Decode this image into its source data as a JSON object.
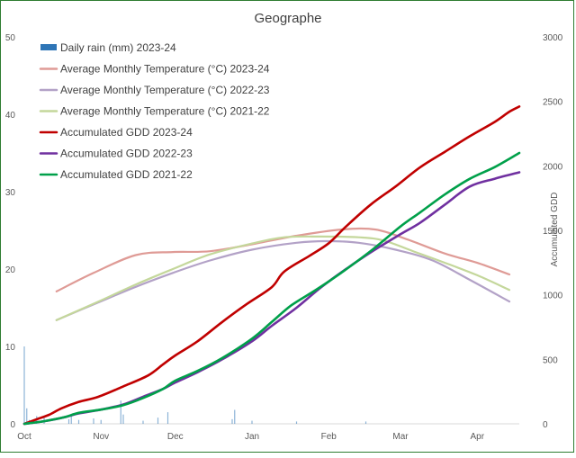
{
  "chart_data": {
    "type": "line",
    "title": "Geographe",
    "y_left": {
      "label": "",
      "ylim": [
        0,
        50
      ],
      "ticks": [
        0,
        10,
        20,
        30,
        40,
        50
      ]
    },
    "y_right": {
      "label": "Accumulated GDD",
      "ylim": [
        0,
        3000
      ],
      "ticks": [
        0,
        500,
        1000,
        1500,
        2000,
        2500,
        3000
      ]
    },
    "x": {
      "labels": [
        "Oct",
        "Nov",
        "Dec",
        "Jan",
        "Feb",
        "Mar",
        "Apr"
      ],
      "day_range": [
        0,
        200
      ],
      "label_days": [
        0,
        31,
        61,
        92,
        123,
        152,
        183
      ]
    },
    "legend_position": "top-left",
    "grid": false,
    "series": [
      {
        "key": "rain",
        "name": "Daily rain (mm) 2023-24",
        "kind": "bar",
        "axis": "left",
        "color": "#2e75b6",
        "points": [
          [
            0,
            10
          ],
          [
            1,
            2
          ],
          [
            2,
            0.5
          ],
          [
            5,
            1
          ],
          [
            8,
            0.8
          ],
          [
            18,
            0.6
          ],
          [
            19,
            1.2
          ],
          [
            22,
            0.5
          ],
          [
            28,
            0.7
          ],
          [
            31,
            0.5
          ],
          [
            39,
            3
          ],
          [
            40,
            1.2
          ],
          [
            48,
            0.4
          ],
          [
            54,
            0.8
          ],
          [
            58,
            1.5
          ],
          [
            84,
            0.6
          ],
          [
            85,
            1.8
          ],
          [
            92,
            0.4
          ],
          [
            110,
            0.3
          ],
          [
            138,
            0.3
          ]
        ]
      },
      {
        "key": "t2324",
        "name": "Average Monthly Temperature (°C) 2023-24",
        "kind": "line",
        "axis": "left",
        "color": "#df9b96",
        "points": [
          [
            13,
            17.1
          ],
          [
            28,
            19.5
          ],
          [
            45,
            21.8
          ],
          [
            60,
            22.2
          ],
          [
            75,
            22.3
          ],
          [
            92,
            23.2
          ],
          [
            110,
            24.3
          ],
          [
            128,
            25.1
          ],
          [
            142,
            25.1
          ],
          [
            155,
            23.8
          ],
          [
            170,
            22.0
          ],
          [
            183,
            20.8
          ],
          [
            196,
            19.3
          ]
        ]
      },
      {
        "key": "t2223",
        "name": "Average Monthly Temperature (°C) 2022-23",
        "kind": "line",
        "axis": "left",
        "color": "#b3a2c7",
        "points": [
          [
            13,
            13.4
          ],
          [
            30,
            15.7
          ],
          [
            45,
            17.7
          ],
          [
            60,
            19.5
          ],
          [
            75,
            21.1
          ],
          [
            92,
            22.5
          ],
          [
            110,
            23.4
          ],
          [
            122,
            23.6
          ],
          [
            135,
            23.4
          ],
          [
            150,
            22.5
          ],
          [
            165,
            21.1
          ],
          [
            180,
            18.6
          ],
          [
            196,
            15.8
          ]
        ]
      },
      {
        "key": "t2122",
        "name": "Average Monthly Temperature (°C) 2021-22",
        "kind": "line",
        "axis": "left",
        "color": "#c4d79b",
        "points": [
          [
            13,
            13.4
          ],
          [
            30,
            15.8
          ],
          [
            45,
            18.0
          ],
          [
            60,
            20.0
          ],
          [
            75,
            21.9
          ],
          [
            92,
            23.3
          ],
          [
            105,
            24.1
          ],
          [
            120,
            24.2
          ],
          [
            135,
            24.1
          ],
          [
            145,
            23.7
          ],
          [
            158,
            22.2
          ],
          [
            170,
            20.8
          ],
          [
            183,
            19.2
          ],
          [
            196,
            17.3
          ]
        ]
      },
      {
        "key": "g2324",
        "name": "Accumulated GDD 2023-24",
        "kind": "line",
        "axis": "right",
        "color": "#c00000",
        "points": [
          [
            0,
            0
          ],
          [
            5,
            35
          ],
          [
            10,
            70
          ],
          [
            15,
            120
          ],
          [
            22,
            170
          ],
          [
            30,
            210
          ],
          [
            40,
            290
          ],
          [
            50,
            375
          ],
          [
            56,
            460
          ],
          [
            61,
            530
          ],
          [
            70,
            640
          ],
          [
            80,
            790
          ],
          [
            90,
            930
          ],
          [
            100,
            1060
          ],
          [
            105,
            1180
          ],
          [
            115,
            1300
          ],
          [
            123,
            1400
          ],
          [
            130,
            1530
          ],
          [
            140,
            1700
          ],
          [
            150,
            1840
          ],
          [
            160,
            1990
          ],
          [
            170,
            2110
          ],
          [
            180,
            2230
          ],
          [
            190,
            2340
          ],
          [
            196,
            2420
          ],
          [
            200,
            2460
          ]
        ]
      },
      {
        "key": "g2223",
        "name": "Accumulated GDD 2022-23",
        "kind": "line",
        "axis": "right",
        "color": "#7030a0",
        "points": [
          [
            0,
            0
          ],
          [
            8,
            20
          ],
          [
            16,
            50
          ],
          [
            22,
            80
          ],
          [
            31,
            110
          ],
          [
            40,
            150
          ],
          [
            48,
            210
          ],
          [
            56,
            270
          ],
          [
            61,
            320
          ],
          [
            70,
            400
          ],
          [
            80,
            500
          ],
          [
            92,
            640
          ],
          [
            100,
            760
          ],
          [
            110,
            900
          ],
          [
            120,
            1060
          ],
          [
            130,
            1200
          ],
          [
            140,
            1330
          ],
          [
            152,
            1470
          ],
          [
            160,
            1560
          ],
          [
            170,
            1700
          ],
          [
            180,
            1840
          ],
          [
            190,
            1900
          ],
          [
            200,
            1950
          ]
        ]
      },
      {
        "key": "g2122",
        "name": "Accumulated GDD 2021-22",
        "kind": "line",
        "axis": "right",
        "color": "#00a04a",
        "points": [
          [
            0,
            0
          ],
          [
            8,
            20
          ],
          [
            16,
            50
          ],
          [
            22,
            85
          ],
          [
            31,
            110
          ],
          [
            40,
            145
          ],
          [
            48,
            200
          ],
          [
            56,
            270
          ],
          [
            61,
            335
          ],
          [
            70,
            410
          ],
          [
            80,
            510
          ],
          [
            92,
            660
          ],
          [
            100,
            790
          ],
          [
            108,
            920
          ],
          [
            118,
            1040
          ],
          [
            128,
            1170
          ],
          [
            140,
            1340
          ],
          [
            152,
            1530
          ],
          [
            160,
            1640
          ],
          [
            170,
            1780
          ],
          [
            180,
            1900
          ],
          [
            190,
            1990
          ],
          [
            200,
            2100
          ]
        ]
      }
    ]
  }
}
